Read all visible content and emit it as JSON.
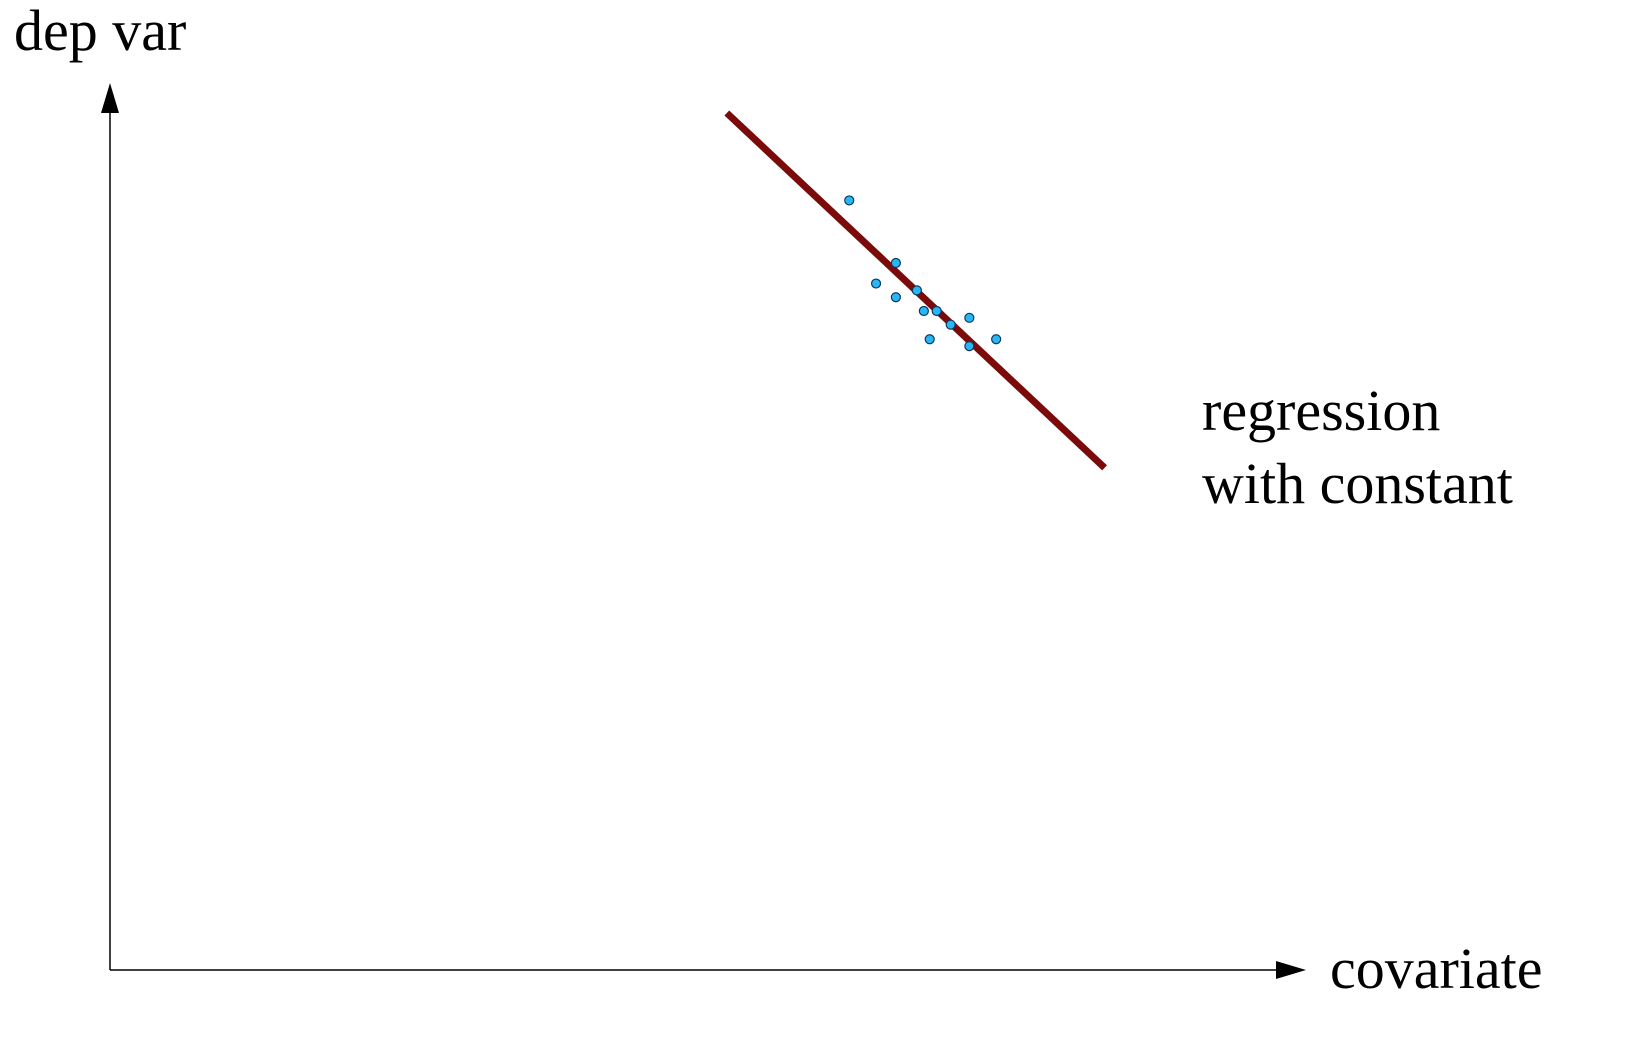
{
  "chart_data": {
    "type": "scatter",
    "xlabel": "covariate",
    "ylabel": "dep var",
    "title": "",
    "grid": false,
    "axis_ticks": false,
    "xlim": [
      0,
      100
    ],
    "ylim": [
      0,
      100
    ],
    "points": [
      {
        "x": 63.4,
        "y": 89.8
      },
      {
        "x": 67.4,
        "y": 82.5
      },
      {
        "x": 65.7,
        "y": 80.1
      },
      {
        "x": 67.4,
        "y": 78.5
      },
      {
        "x": 69.2,
        "y": 79.3
      },
      {
        "x": 69.8,
        "y": 76.9
      },
      {
        "x": 70.9,
        "y": 76.9
      },
      {
        "x": 70.3,
        "y": 73.6
      },
      {
        "x": 72.1,
        "y": 75.3
      },
      {
        "x": 73.7,
        "y": 76.1
      },
      {
        "x": 73.7,
        "y": 72.8
      },
      {
        "x": 76.0,
        "y": 73.6
      }
    ],
    "regression_line": {
      "label": "regression\nwith constant",
      "label_lines": [
        "regression",
        "with constant"
      ],
      "x": [
        52.9,
        85.3
      ],
      "y": [
        100,
        58.6
      ]
    },
    "colors": {
      "points_fill": "#29b6f6",
      "points_stroke": "#0a3a5a",
      "line": "#7b0a0a",
      "axes": "#000000"
    }
  }
}
